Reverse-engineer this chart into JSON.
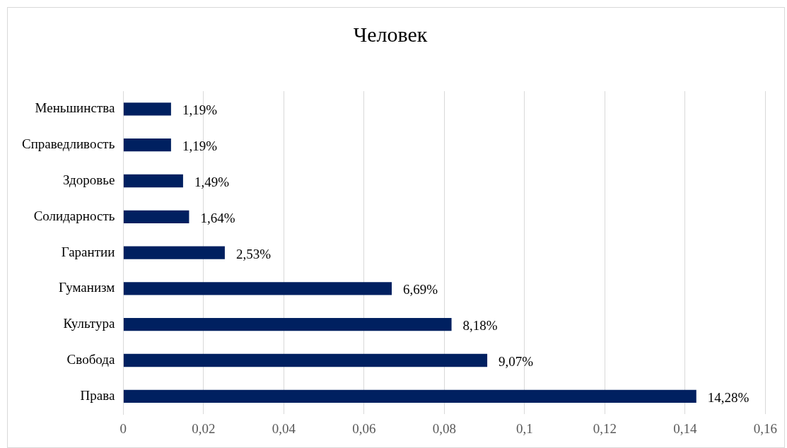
{
  "chart_data": {
    "type": "bar",
    "orientation": "horizontal",
    "title": "Человек",
    "categories": [
      "Меньшинства",
      "Справедливость",
      "Здоровье",
      "Солидарность",
      "Гарантии",
      "Гуманизм",
      "Культура",
      "Свобода",
      "Права"
    ],
    "values": [
      0.0119,
      0.0119,
      0.0149,
      0.0164,
      0.0253,
      0.0669,
      0.0818,
      0.0907,
      0.1428
    ],
    "value_labels": [
      "1,19%",
      "1,19%",
      "1,49%",
      "1,64%",
      "2,53%",
      "6,69%",
      "8,18%",
      "9,07%",
      "14,28%"
    ],
    "color": "#002060",
    "xlim": [
      0,
      0.16
    ],
    "xticks": [
      0,
      {
        "value": 0.02,
        "label": "0,02"
      },
      {
        "value": 0.04,
        "label": "0,04"
      },
      {
        "value": 0.06,
        "label": "0,06"
      },
      {
        "value": 0.08,
        "label": "0,08"
      },
      {
        "value": 0.1,
        "label": "0,1"
      },
      {
        "value": 0.12,
        "label": "0,12"
      },
      {
        "value": 0.14,
        "label": "0,14"
      },
      {
        "value": 0.16,
        "label": "0,16"
      }
    ],
    "grid": "x"
  }
}
